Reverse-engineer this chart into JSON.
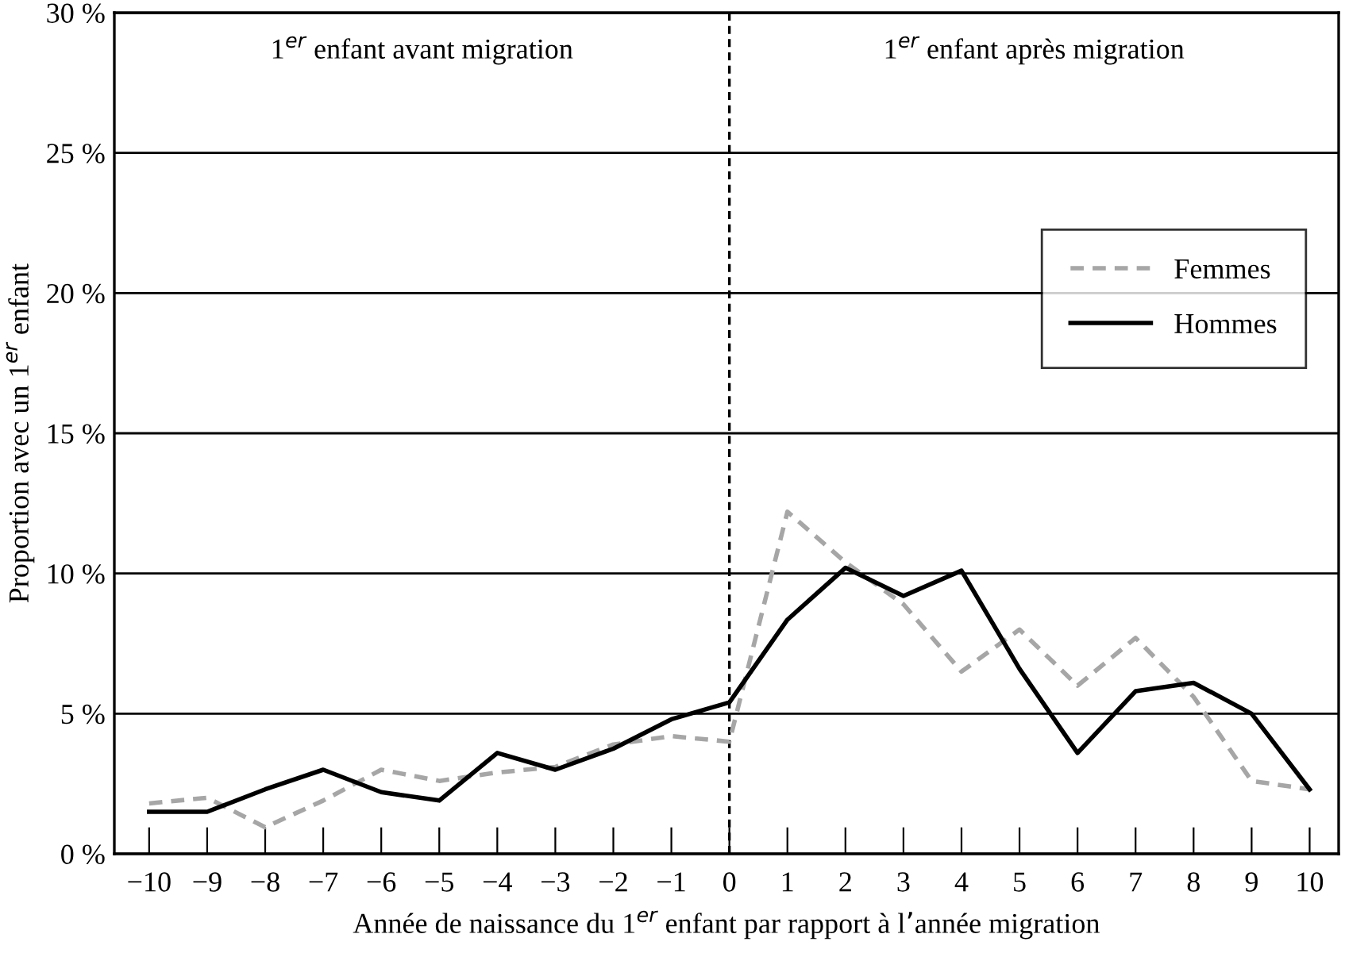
{
  "chart_data": {
    "type": "line",
    "xlabel": "Année de naissance du 1$^{er}$ enfant par rapport à l’année migration",
    "ylabel": "Proportion avec un 1$^{er}$ enfant",
    "annotations": [
      "1$^{er}$ enfant avant migration",
      "1$^{er}$ enfant après migration"
    ],
    "x": [
      -10,
      -9,
      -8,
      -7,
      -6,
      -5,
      -4,
      -3,
      -2,
      -1,
      0,
      1,
      2,
      3,
      4,
      5,
      6,
      7,
      8,
      9,
      10
    ],
    "series": [
      {
        "name": "Femmes",
        "color": "#a6a6a6",
        "line_style": "dashed",
        "values": [
          1.8,
          2.0,
          0.95,
          1.9,
          3.0,
          2.6,
          2.9,
          3.1,
          3.9,
          4.2,
          4.0,
          12.2,
          10.4,
          8.9,
          6.5,
          8.0,
          6.0,
          7.7,
          5.6,
          2.6,
          2.3
        ]
      },
      {
        "name": "Hommes",
        "color": "#000000",
        "line_style": "solid",
        "values": [
          1.5,
          1.5,
          2.3,
          3.0,
          2.2,
          1.9,
          3.6,
          3.0,
          3.75,
          4.8,
          5.4,
          8.35,
          10.2,
          9.2,
          10.1,
          6.6,
          3.6,
          5.8,
          6.1,
          5.0,
          2.3
        ]
      }
    ],
    "xlim": [
      -10.6,
      10.5
    ],
    "xticks": [
      {
        "value": -10,
        "label": "−10"
      },
      {
        "value": -9,
        "label": "−9"
      },
      {
        "value": -8,
        "label": "−8"
      },
      {
        "value": -7,
        "label": "−7"
      },
      {
        "value": -6,
        "label": "−6"
      },
      {
        "value": -5,
        "label": "−5"
      },
      {
        "value": -4,
        "label": "−4"
      },
      {
        "value": -3,
        "label": "−3"
      },
      {
        "value": -2,
        "label": "−2"
      },
      {
        "value": -1,
        "label": "−1"
      },
      0,
      1,
      2,
      3,
      4,
      5,
      6,
      7,
      8,
      9,
      10
    ],
    "ylim": [
      0,
      30
    ],
    "yticks": [
      {
        "value": 0,
        "label": "0 %"
      },
      {
        "value": 5,
        "label": "5 %"
      },
      {
        "value": 10,
        "label": "10 %"
      },
      {
        "value": 15,
        "label": "15 %"
      },
      {
        "value": 20,
        "label": "20 %"
      },
      {
        "value": 25,
        "label": "25 %"
      },
      {
        "value": 30,
        "label": "30 %"
      }
    ],
    "ref_lines": [
      {
        "axis": "x",
        "value": 0,
        "color": "#000000",
        "line_style": "dashed"
      }
    ],
    "grid": "y",
    "legend": "right",
    "marker": "none"
  }
}
